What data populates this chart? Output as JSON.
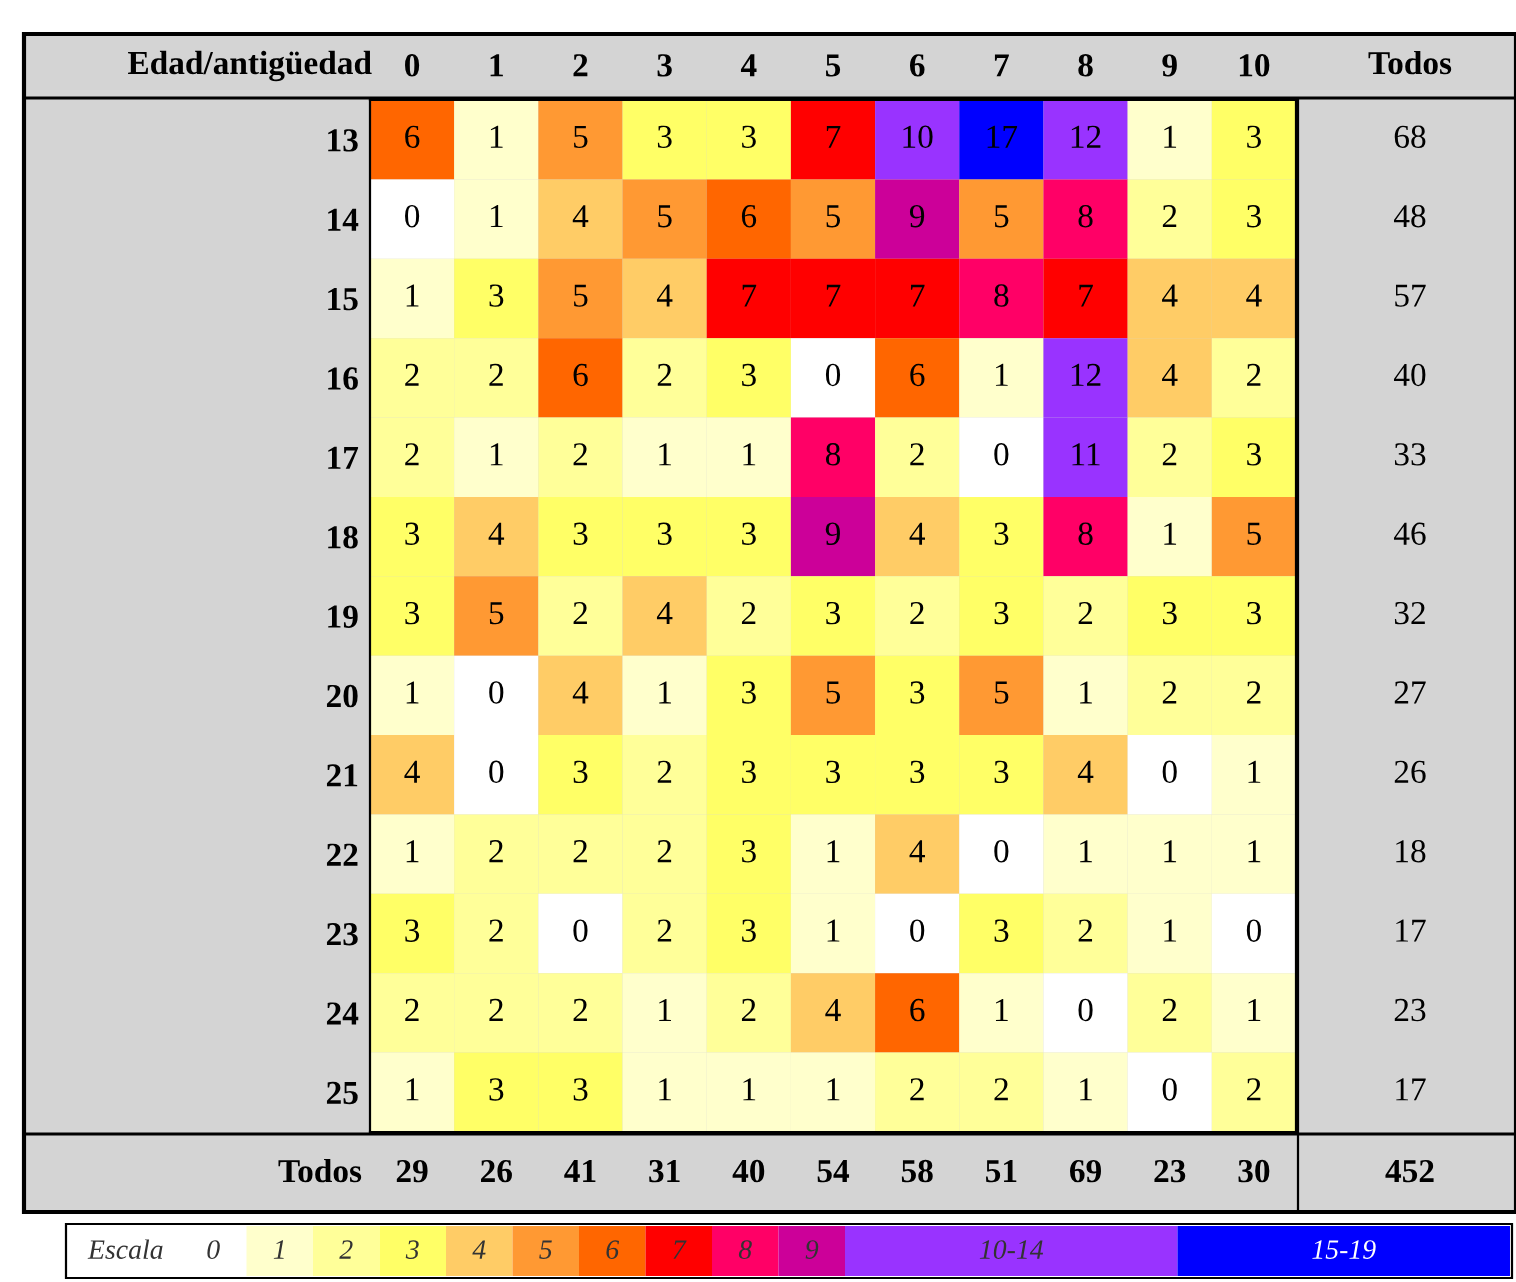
{
  "chart_data": {
    "type": "heatmap",
    "ylabel": "Edad/antigüedad",
    "y2label": "Todos",
    "clabel": "Escala",
    "categories": [
      "0",
      "1",
      "2",
      "3",
      "4",
      "5",
      "6",
      "7",
      "8",
      "9",
      "10"
    ],
    "y_categories": [
      "13",
      "14",
      "15",
      "16",
      "17",
      "18",
      "19",
      "20",
      "21",
      "22",
      "23",
      "24",
      "25"
    ],
    "y2_categories": [
      "68",
      "48",
      "57",
      "40",
      "33",
      "46",
      "32",
      "27",
      "26",
      "18",
      "17",
      "23",
      "17"
    ],
    "cells": [
      [
        6,
        1,
        5,
        3,
        3,
        7,
        10,
        17,
        12,
        1,
        3
      ],
      [
        0,
        1,
        4,
        5,
        6,
        5,
        9,
        5,
        8,
        2,
        3
      ],
      [
        1,
        3,
        5,
        4,
        7,
        7,
        7,
        8,
        7,
        4,
        4
      ],
      [
        2,
        2,
        6,
        2,
        3,
        0,
        6,
        1,
        12,
        4,
        2
      ],
      [
        2,
        1,
        2,
        1,
        1,
        8,
        2,
        0,
        11,
        2,
        3
      ],
      [
        3,
        4,
        3,
        3,
        3,
        9,
        4,
        3,
        8,
        1,
        5
      ],
      [
        3,
        5,
        2,
        4,
        2,
        3,
        2,
        3,
        2,
        3,
        3
      ],
      [
        1,
        0,
        4,
        1,
        3,
        5,
        3,
        5,
        1,
        2,
        2
      ],
      [
        4,
        0,
        3,
        2,
        3,
        3,
        3,
        3,
        4,
        0,
        1
      ],
      [
        1,
        2,
        2,
        2,
        3,
        1,
        4,
        0,
        1,
        1,
        1
      ],
      [
        3,
        2,
        0,
        2,
        3,
        1,
        0,
        3,
        2,
        1,
        0
      ],
      [
        2,
        2,
        2,
        1,
        2,
        4,
        6,
        1,
        0,
        2,
        1
      ],
      [
        1,
        3,
        3,
        1,
        1,
        1,
        2,
        2,
        1,
        0,
        2
      ]
    ],
    "data_labels": true,
    "totals": [
      "29",
      "26",
      "41",
      "31",
      "40",
      "54",
      "58",
      "51",
      "69",
      "23",
      "30"
    ],
    "annotations": [
      "Todos",
      "452"
    ],
    "cticks": [
      0,
      1,
      2,
      3,
      4,
      5,
      6,
      7,
      8,
      9,
      {
        "value": 12,
        "label": "10-14"
      },
      {
        "value": 17,
        "label": "15-19"
      }
    ],
    "colors": [
      "#ffffff",
      "#ffffcc",
      "#ffff99",
      "#ffff66",
      "#ffcc66",
      "#ff9933",
      "#ff6600",
      "#ff0000",
      "#ff0066",
      "#cc0099",
      "#9933ff",
      "#0000ff"
    ]
  }
}
